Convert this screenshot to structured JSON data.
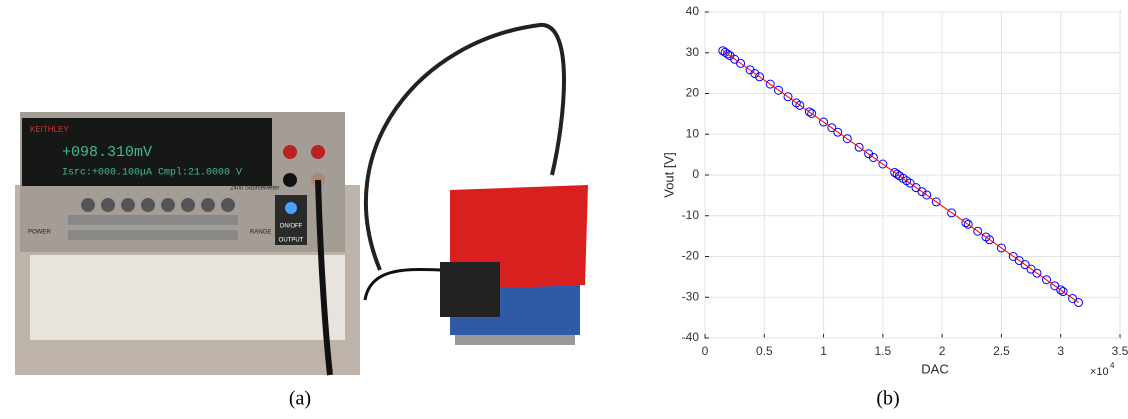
{
  "photo": {
    "brand": "KEITHLEY",
    "display_main": "+098.310mV",
    "display_sub": "Isrc:+000.100μA  Cmpl:21.0000  V",
    "model": "2400 SourceMeter",
    "power": "POWER",
    "onoff": "ON/OFF",
    "output": "OUTPUT",
    "range": "RANGE"
  },
  "panel_labels": [
    "(a)",
    "(b)"
  ],
  "chart_data": {
    "type": "scatter",
    "x_label": "DAC",
    "y_label": "Vout [V]",
    "x_multiplier": "×10",
    "x_multiplier_exponent": "4",
    "xlim": [
      0,
      3.5
    ],
    "xticks": [
      0,
      0.5,
      1,
      1.5,
      2,
      2.5,
      3,
      3.5
    ],
    "ylim": [
      -40,
      40
    ],
    "yticks": [
      -40,
      -30,
      -20,
      -10,
      0,
      10,
      20,
      30,
      40
    ],
    "grid": true,
    "series": [
      {
        "style": "markers",
        "color": "#0000ff",
        "x": [
          0.15,
          0.17,
          0.19,
          0.21,
          0.25,
          0.3,
          0.38,
          0.42,
          0.46,
          0.55,
          0.62,
          0.7,
          0.77,
          0.8,
          0.88,
          0.9,
          1.0,
          1.07,
          1.12,
          1.2,
          1.3,
          1.38,
          1.42,
          1.5,
          1.6,
          1.62,
          1.64,
          1.67,
          1.7,
          1.73,
          1.78,
          1.83,
          1.87,
          1.95,
          2.08,
          2.2,
          2.22,
          2.3,
          2.37,
          2.4,
          2.5,
          2.6,
          2.65,
          2.7,
          2.75,
          2.8,
          2.88,
          2.95,
          3.0,
          3.02,
          3.1,
          3.15
        ],
        "values": [
          30.5,
          30.1,
          29.7,
          29.3,
          28.4,
          27.4,
          25.8,
          24.9,
          24.1,
          22.3,
          20.8,
          19.2,
          17.7,
          17.1,
          15.5,
          15.1,
          13.0,
          11.6,
          10.5,
          8.9,
          6.8,
          5.2,
          4.3,
          2.7,
          0.6,
          0.2,
          -0.2,
          -0.8,
          -1.4,
          -2.0,
          -3.1,
          -4.1,
          -4.9,
          -6.6,
          -9.3,
          -11.7,
          -12.1,
          -13.8,
          -15.2,
          -15.9,
          -17.9,
          -20.0,
          -21.0,
          -22.0,
          -23.1,
          -24.1,
          -25.7,
          -27.2,
          -28.2,
          -28.6,
          -30.3,
          -31.3
        ]
      },
      {
        "style": "line",
        "color": "#ff0000",
        "x": [
          0.15,
          3.15
        ],
        "values": [
          30.5,
          -31.3
        ]
      }
    ]
  }
}
